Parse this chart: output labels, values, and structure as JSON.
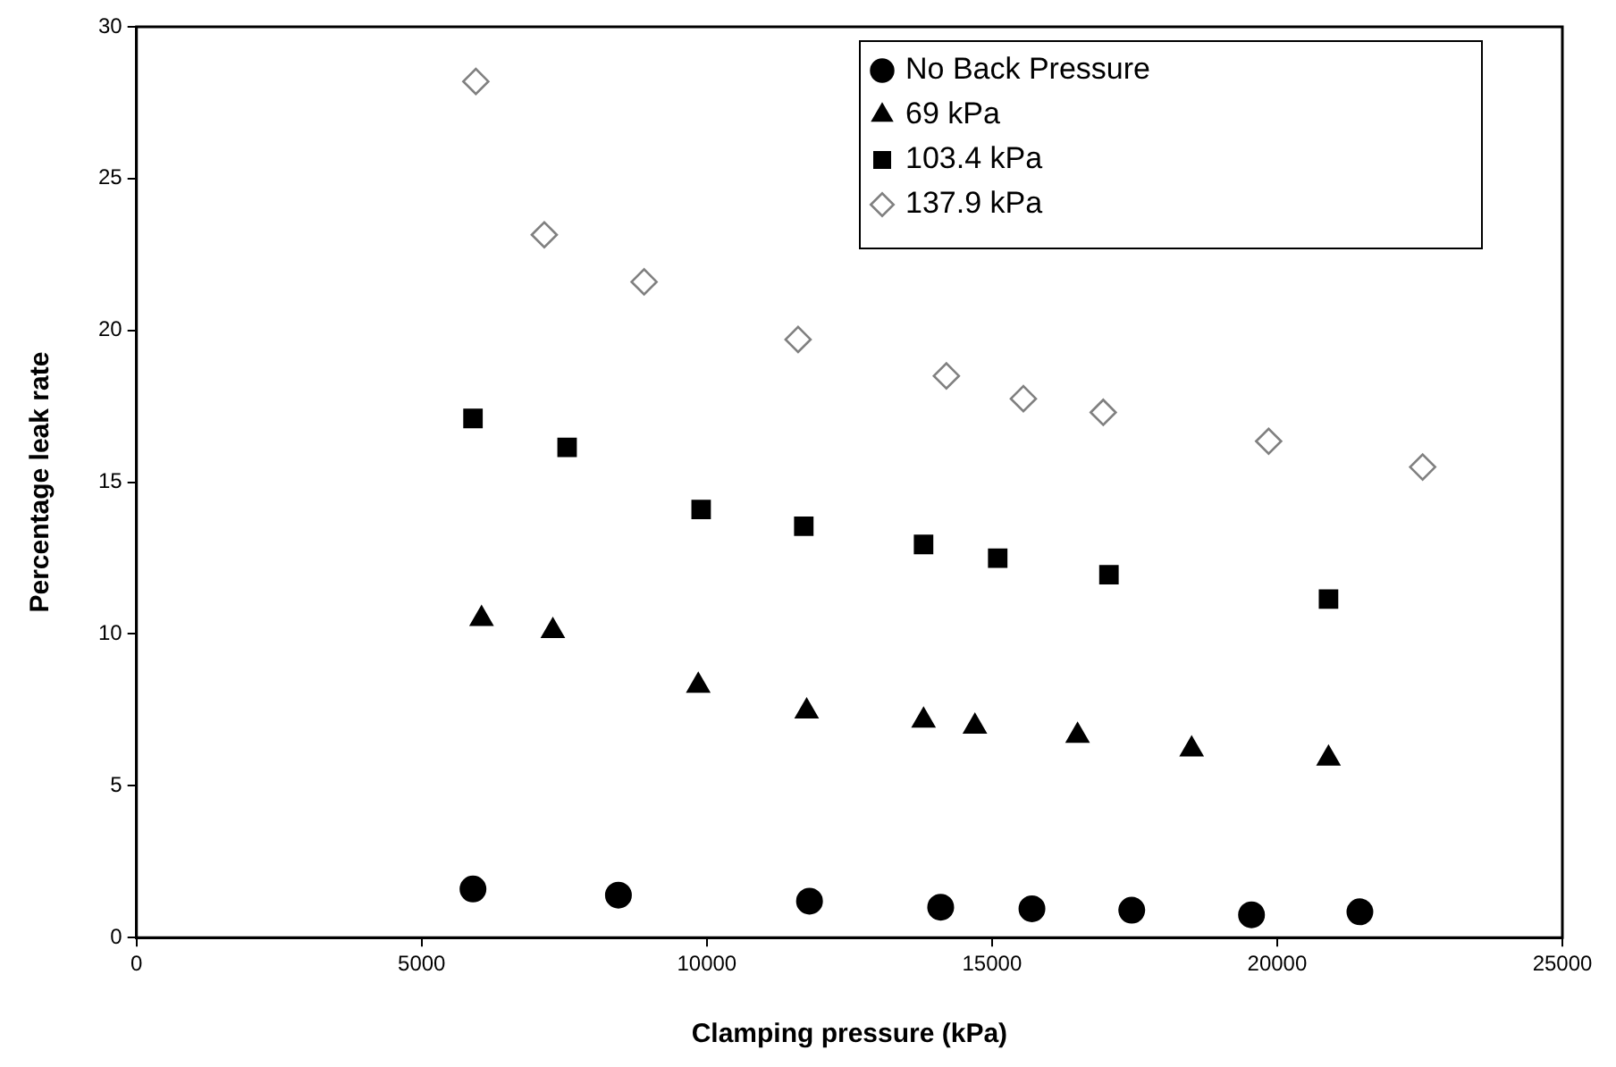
{
  "chart_data": {
    "type": "scatter",
    "xlabel": "Clamping pressure (kPa)",
    "ylabel": "Percentage leak rate",
    "xlim": [
      0,
      25000
    ],
    "xticks": [
      0,
      5000,
      10000,
      15000,
      20000,
      25000
    ],
    "ylim": [
      0,
      30
    ],
    "yticks": [
      0,
      5,
      10,
      15,
      20,
      25,
      30
    ],
    "grid": false,
    "legend": "top right",
    "series": [
      {
        "name": "No Back Pressure",
        "color": "#000000",
        "marker": "circle",
        "x": [
          5900,
          8450,
          11800,
          14100,
          15700,
          17450,
          19550,
          21450
        ],
        "values": [
          1.6,
          1.4,
          1.2,
          1.0,
          0.95,
          0.9,
          0.75,
          0.85
        ]
      },
      {
        "name": "69 kPa",
        "color": "#000000",
        "marker": "triangle",
        "x": [
          6050,
          7300,
          9850,
          11750,
          13800,
          14700,
          16500,
          18500,
          20900
        ],
        "values": [
          10.5,
          10.1,
          8.3,
          7.45,
          7.15,
          6.95,
          6.65,
          6.2,
          5.9
        ]
      },
      {
        "name": "103.4 kPa",
        "color": "#000000",
        "marker": "square",
        "x": [
          5900,
          7550,
          9900,
          11700,
          13800,
          15100,
          17050,
          20900
        ],
        "values": [
          17.1,
          16.15,
          14.1,
          13.55,
          12.95,
          12.5,
          11.95,
          11.15
        ]
      },
      {
        "name": "137.9 kPa",
        "color": "#808080",
        "marker": "diamond",
        "x": [
          5950,
          7150,
          8900,
          11600,
          14200,
          15550,
          16950,
          19850,
          22550
        ],
        "values": [
          28.2,
          23.15,
          21.6,
          19.7,
          18.5,
          17.75,
          17.3,
          16.35,
          15.5
        ]
      }
    ]
  }
}
